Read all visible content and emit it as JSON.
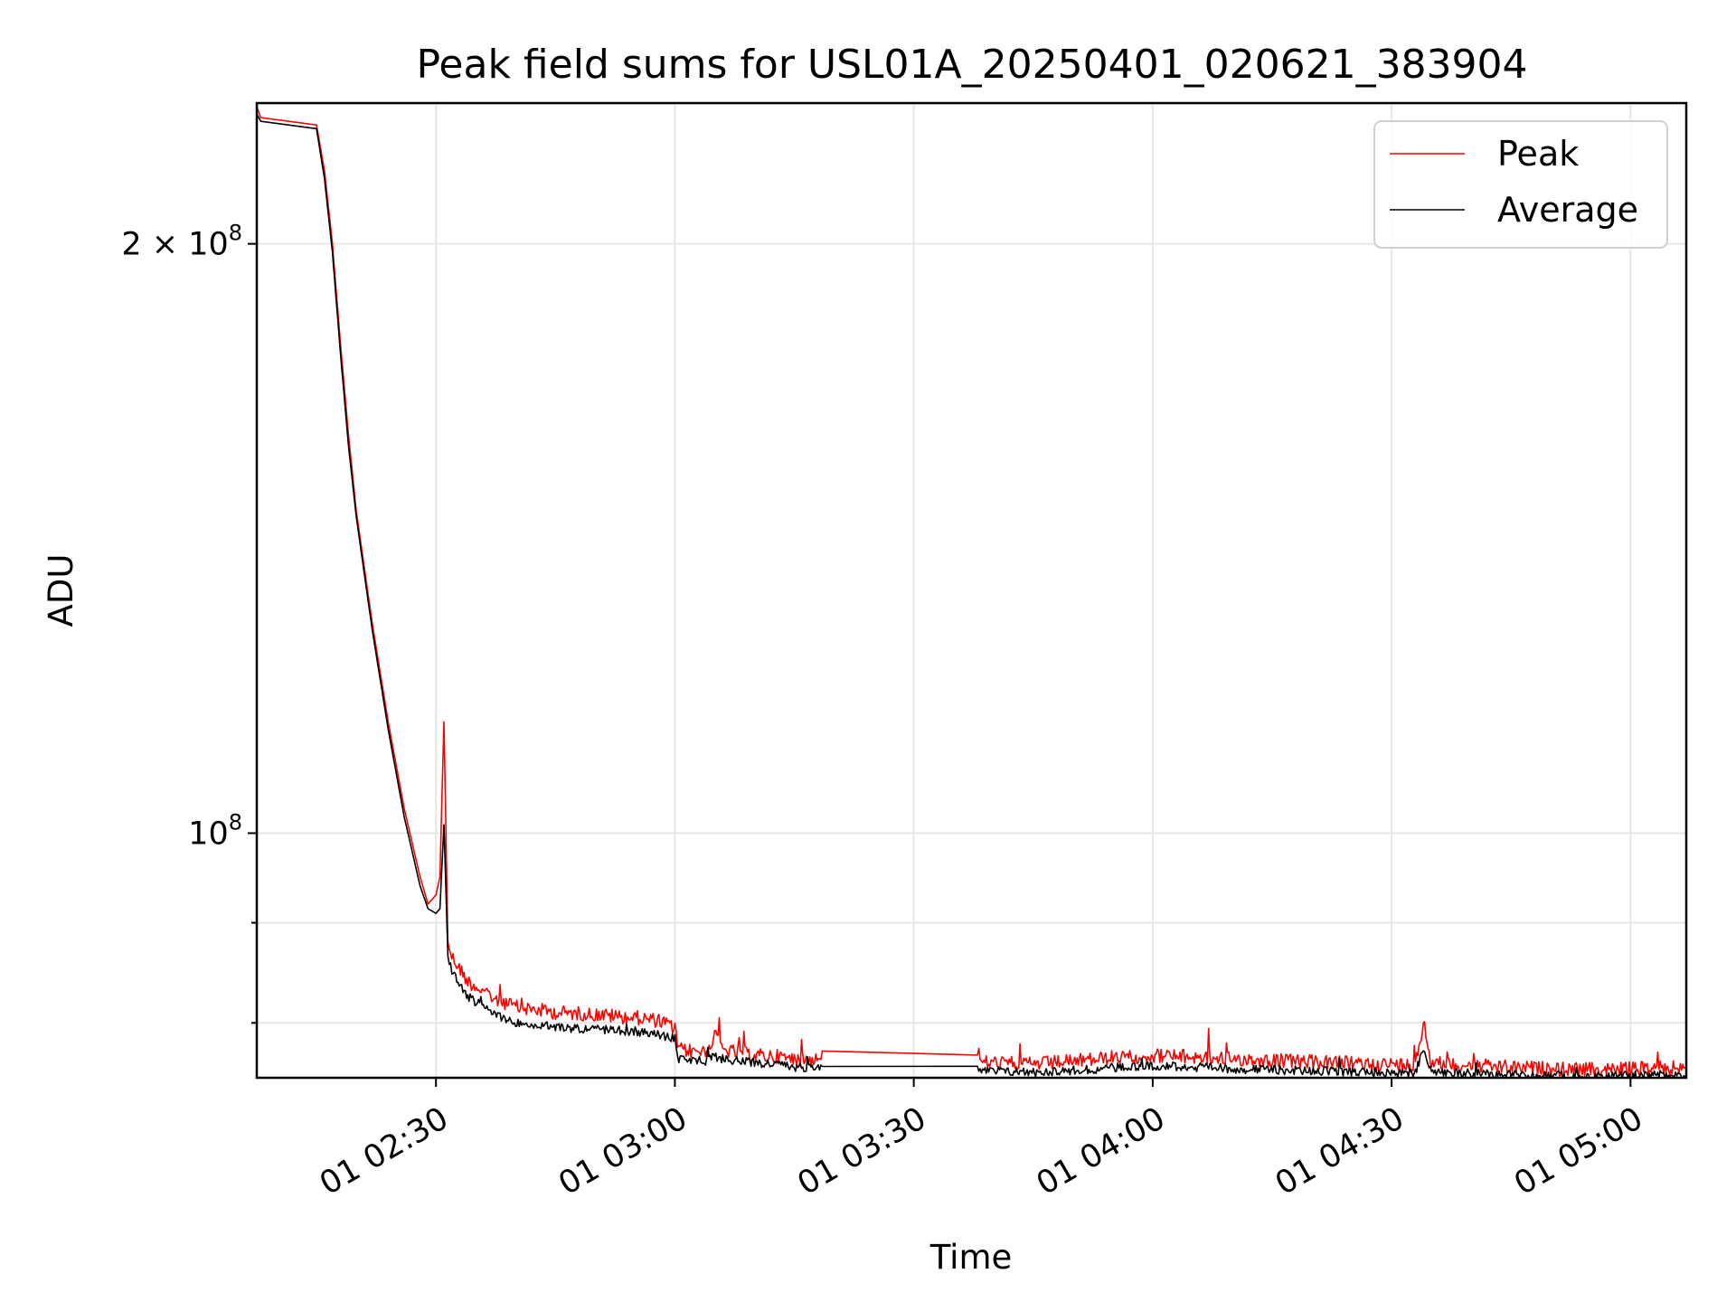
{
  "chart_data": {
    "type": "line",
    "title": "Peak field sums for USL01A_20250401_020621_383904",
    "xlabel": "Time",
    "ylabel": "ADU",
    "yscale": "log",
    "xlim": [
      "2025-04-01 02:07:30",
      "2025-04-01 05:07:00"
    ],
    "ylim": [
      75000000,
      236000000
    ],
    "x_ticks": [
      {
        "label": "01 02:30",
        "value": "2025-04-01 02:30:00"
      },
      {
        "label": "01 03:00",
        "value": "2025-04-01 03:00:00"
      },
      {
        "label": "01 03:30",
        "value": "2025-04-01 03:30:00"
      },
      {
        "label": "01 04:00",
        "value": "2025-04-01 04:00:00"
      },
      {
        "label": "01 04:30",
        "value": "2025-04-01 04:30:00"
      },
      {
        "label": "01 05:00",
        "value": "2025-04-01 05:00:00"
      }
    ],
    "y_ticks_major": [
      {
        "value": 100000000,
        "base": "10",
        "exp": "8",
        "coef": ""
      },
      {
        "value": 200000000,
        "base": "10",
        "exp": "8",
        "coef": "2 × "
      }
    ],
    "y_ticks_minor": [
      80000000,
      90000000
    ],
    "grid": true,
    "legend": "top-right",
    "series": [
      {
        "name": "Peak",
        "color": "#ff0000",
        "x": [
          "2025-04-01 02:07:30",
          "2025-04-01 02:08:00",
          "2025-04-01 02:15:00",
          "2025-04-01 02:16:00",
          "2025-04-01 02:17:00",
          "2025-04-01 02:18:00",
          "2025-04-01 02:19:00",
          "2025-04-01 02:20:00",
          "2025-04-01 02:22:00",
          "2025-04-01 02:24:00",
          "2025-04-01 02:26:00",
          "2025-04-01 02:28:00",
          "2025-04-01 02:29:00",
          "2025-04-01 02:30:00",
          "2025-04-01 02:30:30",
          "2025-04-01 02:31:00",
          "2025-04-01 02:31:30",
          "2025-04-01 02:32:00",
          "2025-04-01 02:34:00",
          "2025-04-01 02:37:00",
          "2025-04-01 02:40:00",
          "2025-04-01 02:45:00",
          "2025-04-01 02:50:00",
          "2025-04-01 02:53:00",
          "2025-04-01 02:55:00",
          "2025-04-01 02:58:00",
          "2025-04-01 03:00:00",
          "2025-04-01 03:00:30",
          "2025-04-01 03:04:00",
          "2025-04-01 03:05:00",
          "2025-04-01 03:06:00",
          "2025-04-01 03:10:00",
          "2025-04-01 03:13:00",
          "2025-04-01 03:15:00",
          "2025-04-01 03:18:00",
          "2025-04-01 03:18:30",
          "2025-04-01 03:38:00",
          "2025-04-01 03:38:30",
          "2025-04-01 03:45:00",
          "2025-04-01 03:52:00",
          "2025-04-01 03:55:00",
          "2025-04-01 04:00:00",
          "2025-04-01 04:10:00",
          "2025-04-01 04:20:00",
          "2025-04-01 04:29:00",
          "2025-04-01 04:33:00",
          "2025-04-01 04:34:00",
          "2025-04-01 04:35:00",
          "2025-04-01 04:40:00",
          "2025-04-01 04:45:00",
          "2025-04-01 04:50:00",
          "2025-04-01 04:55:00",
          "2025-04-01 05:00:00",
          "2025-04-01 05:07:00"
        ],
        "y": [
          235000000,
          232000000,
          230000000,
          218000000,
          200000000,
          178000000,
          160000000,
          146000000,
          128000000,
          114000000,
          103000000,
          95000000,
          92000000,
          93000000,
          95000000,
          114000000,
          88000000,
          86500000,
          84000000,
          82500000,
          81500000,
          81000000,
          80800000,
          80600000,
          80500000,
          80200000,
          79500000,
          77500000,
          77300000,
          79000000,
          77500000,
          77000000,
          76900000,
          76600000,
          76700000,
          77400000,
          77400000,
          76400000,
          76200000,
          76600000,
          76800000,
          77000000,
          76700000,
          76400000,
          76200000,
          76100000,
          80000000,
          76300000,
          76100000,
          75900000,
          75800000,
          75700000,
          75800000,
          75900000
        ]
      },
      {
        "name": "Average",
        "color": "#000000",
        "x": [
          "2025-04-01 02:07:30",
          "2025-04-01 02:08:00",
          "2025-04-01 02:15:00",
          "2025-04-01 02:16:00",
          "2025-04-01 02:17:00",
          "2025-04-01 02:18:00",
          "2025-04-01 02:19:00",
          "2025-04-01 02:20:00",
          "2025-04-01 02:22:00",
          "2025-04-01 02:24:00",
          "2025-04-01 02:26:00",
          "2025-04-01 02:28:00",
          "2025-04-01 02:29:00",
          "2025-04-01 02:30:00",
          "2025-04-01 02:30:30",
          "2025-04-01 02:31:00",
          "2025-04-01 02:31:30",
          "2025-04-01 02:32:00",
          "2025-04-01 02:34:00",
          "2025-04-01 02:37:00",
          "2025-04-01 02:40:00",
          "2025-04-01 02:45:00",
          "2025-04-01 02:50:00",
          "2025-04-01 02:53:00",
          "2025-04-01 02:55:00",
          "2025-04-01 02:58:00",
          "2025-04-01 03:00:00",
          "2025-04-01 03:00:30",
          "2025-04-01 03:04:00",
          "2025-04-01 03:05:00",
          "2025-04-01 03:06:00",
          "2025-04-01 03:10:00",
          "2025-04-01 03:13:00",
          "2025-04-01 03:15:00",
          "2025-04-01 03:18:00",
          "2025-04-01 03:18:30",
          "2025-04-01 03:38:00",
          "2025-04-01 03:38:30",
          "2025-04-01 03:45:00",
          "2025-04-01 03:52:00",
          "2025-04-01 03:55:00",
          "2025-04-01 04:00:00",
          "2025-04-01 04:10:00",
          "2025-04-01 04:20:00",
          "2025-04-01 04:29:00",
          "2025-04-01 04:33:00",
          "2025-04-01 04:34:00",
          "2025-04-01 04:35:00",
          "2025-04-01 04:40:00",
          "2025-04-01 04:45:00",
          "2025-04-01 04:50:00",
          "2025-04-01 04:55:00",
          "2025-04-01 05:00:00",
          "2025-04-01 05:07:00"
        ],
        "y": [
          233000000,
          231000000,
          229000000,
          216000000,
          198000000,
          176000000,
          158000000,
          145000000,
          127000000,
          113000000,
          102000000,
          94000000,
          91500000,
          91000000,
          91500000,
          101000000,
          86500000,
          85000000,
          82500000,
          81000000,
          80000000,
          79600000,
          79400000,
          79300000,
          79200000,
          78900000,
          78500000,
          76700000,
          76500000,
          76900000,
          76700000,
          76300000,
          76200000,
          75900000,
          76000000,
          76000000,
          76000000,
          75600000,
          75500000,
          75700000,
          75900000,
          76100000,
          75800000,
          75600000,
          75500000,
          75400000,
          77800000,
          75500000,
          75400000,
          75300000,
          75200000,
          75100000,
          75200000,
          75300000
        ]
      }
    ]
  }
}
